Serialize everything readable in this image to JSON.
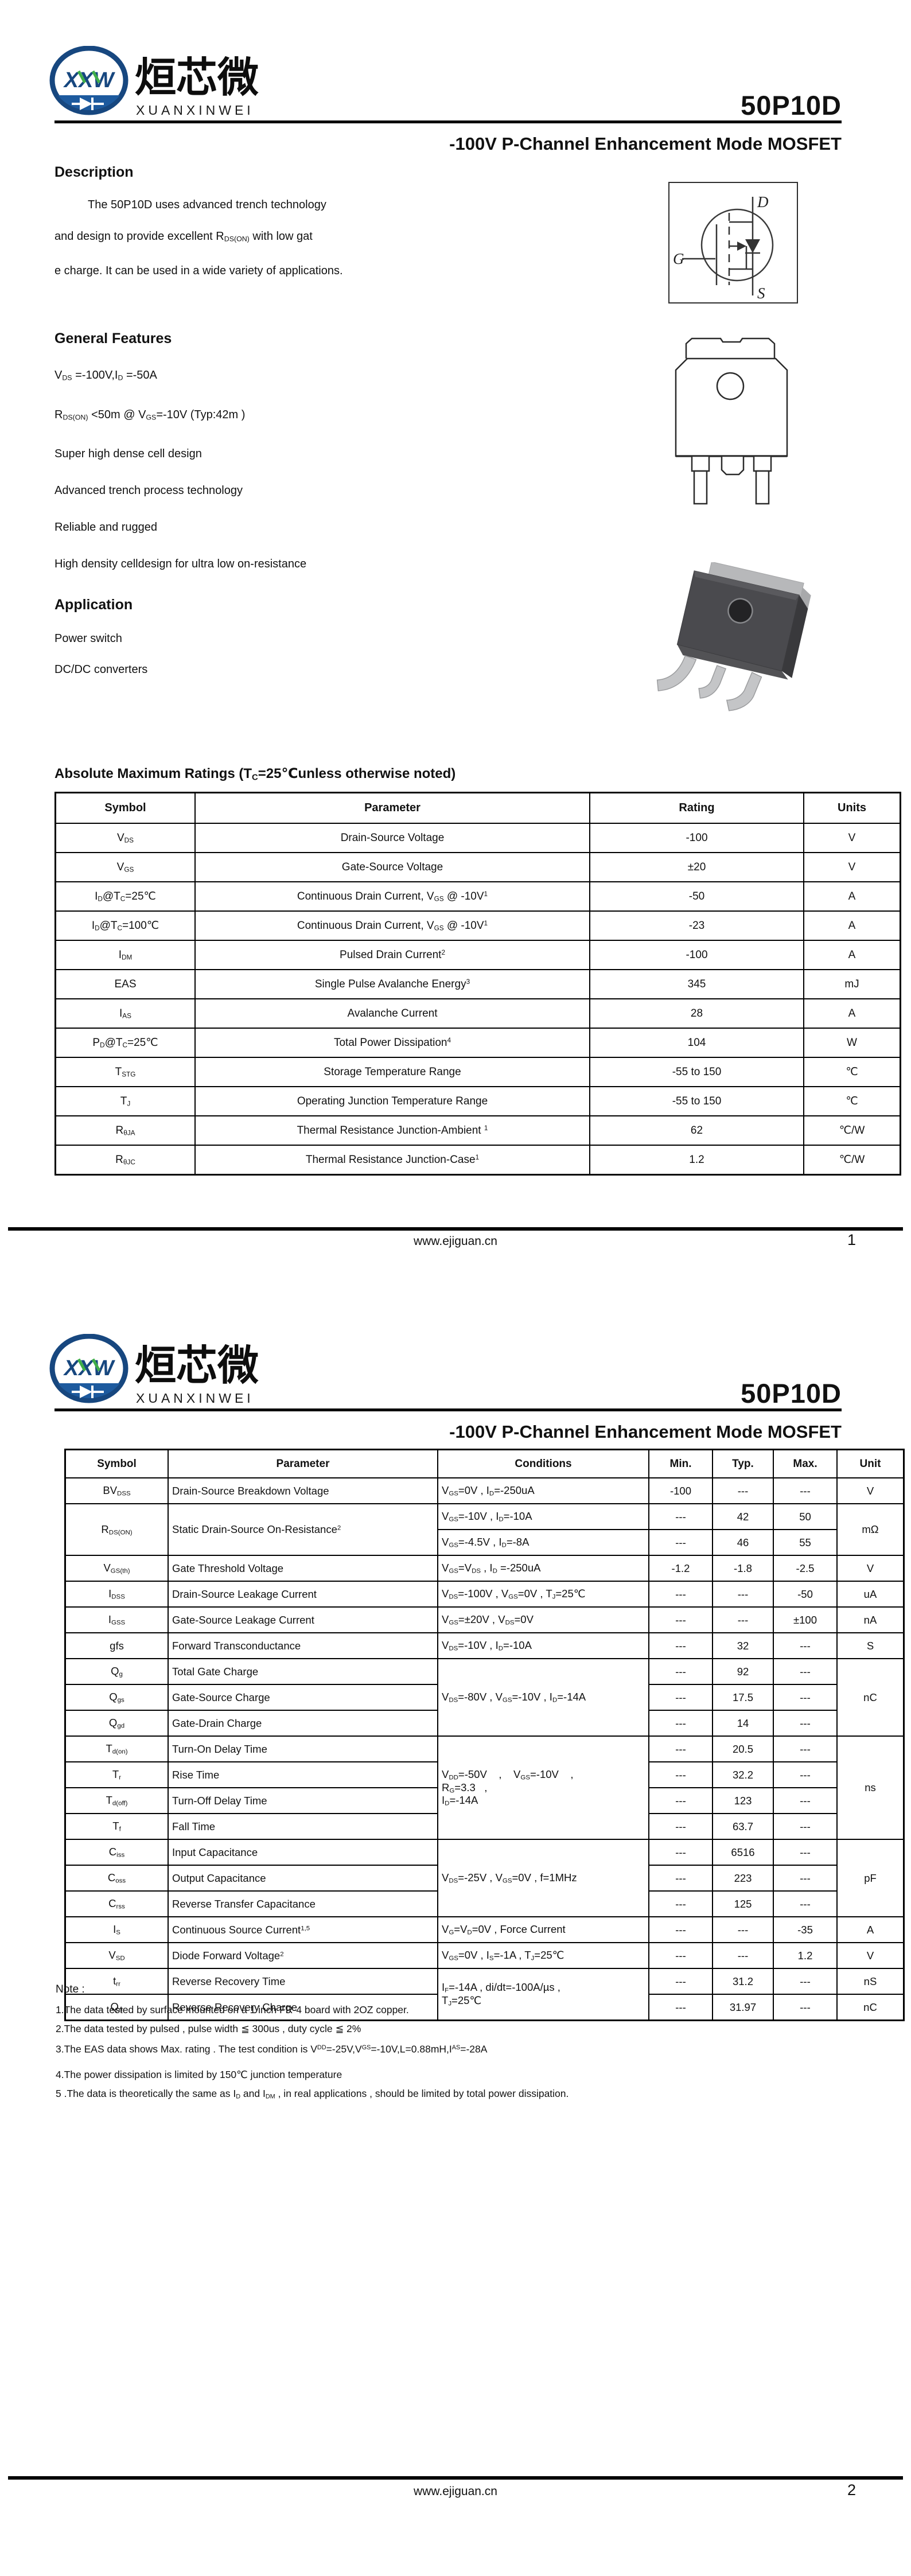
{
  "brand": {
    "logo_blue": "#17477f",
    "logo_blue_fill": "#1d5a9e",
    "logo_green": "#3fae49"
  },
  "header": {
    "logo_xxw": "XXW",
    "logo_cn": "烜芯微",
    "logo_en": "XUANXINWEI",
    "part_number": "50P10D",
    "title": "-100V P-Channel Enhancement Mode MOSFET"
  },
  "page1": {
    "description_heading": "Description",
    "description_lines": [
      "The 50P10D uses advanced trench technology",
      "and design to provide excellent R~DS(ON)~ with low gat",
      "e charge. It can be used in a wide variety of applications."
    ],
    "features_heading": "General Features",
    "features": [
      "V~DS~ =-100V,I~D~ =-50A",
      "R~DS(ON)~ <50m @ V~GS~=-10V  (Typ:42m )",
      "Super high dense cell design",
      "Advanced trench process technology",
      "Reliable and rugged",
      "High density celldesign for ultra low on-resistance"
    ],
    "application_heading": "Application",
    "applications": [
      "Power switch",
      "DC/DC converters"
    ],
    "symbol_d": "D",
    "symbol_g": "G",
    "symbol_s": "S",
    "abs_max_heading": "Absolute Maximum Ratings (T~C~=25℃unless otherwise noted)",
    "abs_max": {
      "headers": [
        "Symbol",
        "Parameter",
        "Rating",
        "Units"
      ],
      "rows": [
        [
          "V~DS~",
          "Drain-Source Voltage",
          "-100",
          "V"
        ],
        [
          "V~GS~",
          "Gate-Source Voltage",
          "±20",
          "V"
        ],
        [
          "I~D~@T~C~=25℃",
          "Continuous Drain Current, V~GS~ @ -10V^1^",
          "-50",
          "A"
        ],
        [
          "I~D~@T~C~=100℃",
          "Continuous Drain Current, V~GS~ @ -10V^1^",
          "-23",
          "A"
        ],
        [
          "I~DM~",
          "Pulsed Drain Current^2^",
          "-100",
          "A"
        ],
        [
          "EAS",
          "Single Pulse Avalanche Energy^3^",
          "345",
          "mJ"
        ],
        [
          "I~AS~",
          "Avalanche Current",
          "28",
          "A"
        ],
        [
          "P~D~@T~C~=25℃",
          "Total Power Dissipation^4^",
          "104",
          "W"
        ],
        [
          "T~STG~",
          "Storage Temperature Range",
          "-55 to 150",
          "℃"
        ],
        [
          "T~J~",
          "Operating Junction Temperature Range",
          "-55 to 150",
          "℃"
        ],
        [
          "R~θJA~",
          "Thermal Resistance Junction-Ambient ^1^",
          "62",
          "℃/W"
        ],
        [
          "R~θJC~",
          "Thermal Resistance Junction-Case^1^",
          "1.2",
          "℃/W"
        ]
      ]
    },
    "footer_site": "www.ejiguan.cn",
    "footer_page": "1"
  },
  "page2": {
    "elec": {
      "headers": [
        "Symbol",
        "Parameter",
        "Conditions",
        "Min.",
        "Typ.",
        "Max.",
        "Unit"
      ],
      "rows": [
        [
          "BV~DSS~",
          "Drain-Source Breakdown Voltage",
          "V~GS~=0V , I~D~=-250uA",
          "-100",
          "---",
          "---",
          "V"
        ],
        [
          {
            "t": "R~DS(ON)~",
            "rs": 2
          },
          {
            "t": "Static Drain-Source On-Resistance^2^",
            "rs": 2
          },
          "V~GS~=-10V , I~D~=-10A",
          "---",
          "42",
          "50",
          {
            "t": "mΩ",
            "rs": 2
          }
        ],
        [
          "V~GS~=-4.5V , I~D~=-8A",
          "---",
          "46",
          "55"
        ],
        [
          "V~GS(th)~",
          "Gate Threshold Voltage",
          "V~GS~=V~DS~ , I~D~ =-250uA",
          "-1.2",
          "-1.8",
          "-2.5",
          "V"
        ],
        [
          "I~DSS~",
          "Drain-Source Leakage Current",
          "V~DS~=-100V , V~GS~=0V , T~J~=25℃",
          "---",
          "---",
          "-50",
          "uA"
        ],
        [
          "I~GSS~",
          "Gate-Source Leakage Current",
          "V~GS~=±20V , V~DS~=0V",
          "---",
          "---",
          "±100",
          "nA"
        ],
        [
          "gfs",
          "Forward Transconductance",
          "V~DS~=-10V , I~D~=-10A",
          "---",
          "32",
          "---",
          "S"
        ],
        [
          "Q~g~",
          "Total Gate Charge",
          {
            "t": "V~DS~=-80V , V~GS~=-10V , I~D~=-14A",
            "rs": 3
          },
          "---",
          "92",
          "---",
          {
            "t": "nC",
            "rs": 3
          }
        ],
        [
          "Q~gs~",
          "Gate-Source Charge",
          "---",
          "17.5",
          "---"
        ],
        [
          "Q~gd~",
          "Gate-Drain Charge",
          "---",
          "14",
          "---"
        ],
        [
          "T~d(on)~",
          "Turn-On Delay Time",
          {
            "t": "V~DD~=-50V    ,    V~GS~=-10V    ,\nR~G~=3.3   ,\nI~D~=-14A",
            "rs": 4
          },
          "---",
          "20.5",
          "---",
          {
            "t": "ns",
            "rs": 4
          }
        ],
        [
          "T~r~",
          "Rise Time",
          "---",
          "32.2",
          "---"
        ],
        [
          "T~d(off)~",
          "Turn-Off Delay Time",
          "---",
          "123",
          "---"
        ],
        [
          "T~f~",
          "Fall Time",
          "---",
          "63.7",
          "---"
        ],
        [
          "C~iss~",
          "Input Capacitance",
          {
            "t": "V~DS~=-25V , V~GS~=0V , f=1MHz",
            "rs": 3
          },
          "---",
          "6516",
          "---",
          {
            "t": "pF",
            "rs": 3
          }
        ],
        [
          "C~oss~",
          "Output Capacitance",
          "---",
          "223",
          "---"
        ],
        [
          "C~rss~",
          "Reverse Transfer Capacitance",
          "---",
          "125",
          "---"
        ],
        [
          "I~S~",
          "Continuous Source Current^1,5^",
          "V~G~=V~D~=0V , Force Current",
          "---",
          "---",
          "-35",
          "A"
        ],
        [
          "V~SD~",
          "Diode Forward Voltage^2^",
          "V~GS~=0V , I~S~=-1A , T~J~=25℃",
          "---",
          "---",
          "1.2",
          "V"
        ],
        [
          "t~rr~",
          "Reverse Recovery Time",
          {
            "t": "I~F~=-14A , di/dt=-100A/µs ,\nT~J~=25℃",
            "rs": 2
          },
          "---",
          "31.2",
          "---",
          "nS"
        ],
        [
          "Q~rr~",
          "Reverse Recovery Charge",
          "---",
          "31.97",
          "---",
          "nC"
        ]
      ]
    },
    "note_heading": "Note :",
    "notes": [
      "1.The data tested by surface mounted on a 1 inch FR-4 board with 2OZ copper.",
      "2.The data tested by pulsed , pulse width ≦ 300us , duty cycle ≦ 2%",
      "3.The EAS data shows Max. rating . The test condition is V^DD^=-25V,V^GS^=-10V,L=0.88mH,I^AS^=-28A",
      "4.The power dissipation is limited by 150℃ junction temperature",
      "5 .The data is theoretically the same as I~D~ and I~DM~ , in real applications , should be limited by total power dissipation."
    ],
    "footer_site": "www.ejiguan.cn",
    "footer_page": "2"
  }
}
